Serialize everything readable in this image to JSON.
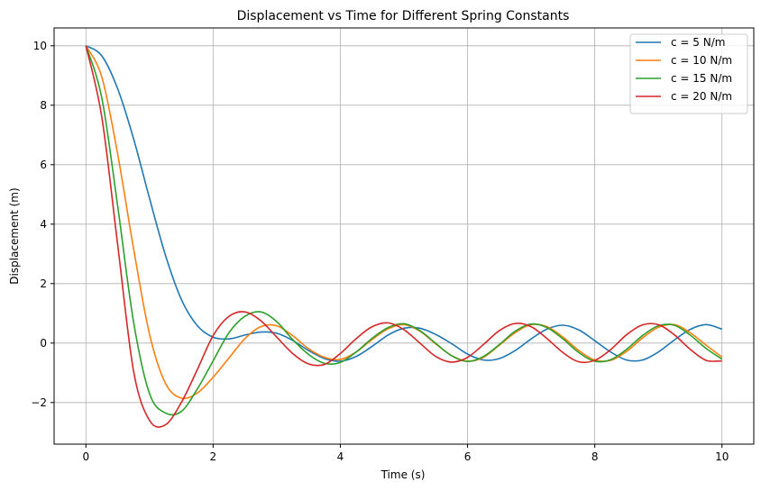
{
  "chart_data": {
    "type": "line",
    "title": "Displacement vs Time for Different Spring Constants",
    "xlabel": "Time (s)",
    "ylabel": "Displacement (m)",
    "xlim": [
      -0.5,
      10.5
    ],
    "ylim": [
      -3.4,
      10.6
    ],
    "xticks": [
      0,
      2,
      4,
      6,
      8,
      10
    ],
    "xtick_labels": [
      "0",
      "2",
      "4",
      "6",
      "8",
      "10"
    ],
    "yticks": [
      -2,
      0,
      2,
      4,
      6,
      8,
      10
    ],
    "ytick_labels": [
      "−2",
      "0",
      "2",
      "4",
      "6",
      "8",
      "10"
    ],
    "grid": true,
    "legend_position": "top-right",
    "x": [
      0,
      0.25,
      0.5,
      0.75,
      1.0,
      1.25,
      1.5,
      1.75,
      2.0,
      2.25,
      2.5,
      2.75,
      3.0,
      3.25,
      3.5,
      3.75,
      4.0,
      4.25,
      4.5,
      4.75,
      5.0,
      5.25,
      5.5,
      5.75,
      6.0,
      6.25,
      6.5,
      6.75,
      7.0,
      7.25,
      7.5,
      7.75,
      8.0,
      8.25,
      8.5,
      8.75,
      9.0,
      9.25,
      9.5,
      9.75,
      10.0
    ],
    "series": [
      {
        "name": "c = 5 N/m",
        "color": "#1f77b4",
        "values": [
          10.0,
          9.66,
          8.55,
          6.87,
          4.87,
          2.96,
          1.47,
          0.59,
          0.2,
          0.14,
          0.27,
          0.37,
          0.33,
          0.09,
          -0.25,
          -0.52,
          -0.61,
          -0.45,
          -0.11,
          0.27,
          0.5,
          0.5,
          0.29,
          -0.02,
          -0.37,
          -0.57,
          -0.52,
          -0.25,
          0.14,
          0.47,
          0.6,
          0.44,
          0.08,
          -0.3,
          -0.57,
          -0.57,
          -0.3,
          0.1,
          0.46,
          0.62,
          0.47
        ]
      },
      {
        "name": "c = 10 N/m",
        "color": "#ff7f0e",
        "values": [
          10.0,
          8.95,
          6.35,
          3.17,
          0.3,
          -1.35,
          -1.85,
          -1.68,
          -1.15,
          -0.5,
          0.15,
          0.55,
          0.58,
          0.25,
          -0.19,
          -0.48,
          -0.55,
          -0.3,
          0.12,
          0.48,
          0.62,
          0.4,
          -0.03,
          -0.42,
          -0.61,
          -0.48,
          -0.07,
          0.35,
          0.62,
          0.55,
          0.2,
          -0.25,
          -0.57,
          -0.58,
          -0.28,
          0.17,
          0.53,
          0.62,
          0.35,
          -0.07,
          -0.47
        ]
      },
      {
        "name": "c = 15 N/m",
        "color": "#2ca02c",
        "values": [
          10.0,
          8.25,
          4.6,
          0.7,
          -1.7,
          -2.35,
          -2.3,
          -1.55,
          -0.6,
          0.35,
          0.9,
          1.05,
          0.72,
          0.12,
          -0.38,
          -0.68,
          -0.65,
          -0.3,
          0.16,
          0.52,
          0.65,
          0.42,
          -0.01,
          -0.43,
          -0.62,
          -0.45,
          -0.05,
          0.4,
          0.64,
          0.52,
          0.14,
          -0.32,
          -0.61,
          -0.56,
          -0.21,
          0.25,
          0.58,
          0.6,
          0.27,
          -0.18,
          -0.54
        ]
      },
      {
        "name": "c = 20 N/m",
        "color": "#d62728",
        "values": [
          10.0,
          7.6,
          3.3,
          -0.95,
          -2.6,
          -2.75,
          -2.0,
          -0.9,
          0.25,
          0.9,
          1.05,
          0.75,
          0.2,
          -0.35,
          -0.7,
          -0.72,
          -0.35,
          0.15,
          0.55,
          0.68,
          0.45,
          0.0,
          -0.45,
          -0.64,
          -0.48,
          -0.05,
          0.42,
          0.66,
          0.55,
          0.15,
          -0.32,
          -0.63,
          -0.58,
          -0.22,
          0.28,
          0.61,
          0.62,
          0.28,
          -0.21,
          -0.58,
          -0.6
        ]
      }
    ]
  }
}
